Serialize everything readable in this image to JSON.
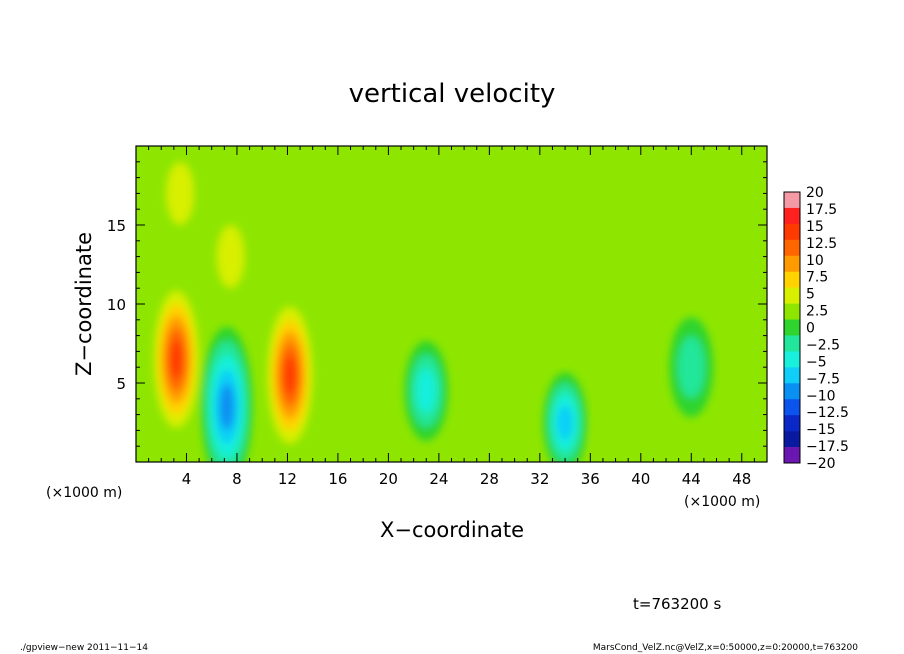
{
  "chart_data": {
    "type": "heatmap",
    "title": "vertical velocity",
    "xlabel": "X−coordinate",
    "ylabel": "Z−coordinate",
    "x_unit_left": "(×1000 m)",
    "x_unit_right": "(×1000 m)",
    "xlim": [
      0,
      50
    ],
    "ylim": [
      0,
      20
    ],
    "x_ticks": [
      4,
      8,
      12,
      16,
      20,
      24,
      28,
      32,
      36,
      40,
      44,
      48
    ],
    "y_ticks": [
      5,
      10,
      15
    ],
    "colorbar": {
      "labels": [
        "20",
        "17.5",
        "15",
        "12.5",
        "10",
        "7.5",
        "5",
        "2.5",
        "0",
        "−2.5",
        "−5",
        "−7.5",
        "−10",
        "−12.5",
        "−15",
        "−17.5",
        "−20"
      ],
      "colors": [
        "#f39aa6",
        "#ff2020",
        "#ff3a00",
        "#ff6600",
        "#ff9a00",
        "#ffd200",
        "#d8ef00",
        "#8ee600",
        "#2fd42f",
        "#22e69a",
        "#18f0dc",
        "#10cef7",
        "#0a8ff2",
        "#0b55ee",
        "#0a28c8",
        "#0a1aa0",
        "#6a16b0"
      ]
    },
    "features": [
      {
        "x": 3.2,
        "z": 6.5,
        "value": 14
      },
      {
        "x": 7.2,
        "z": 3.5,
        "value": -12
      },
      {
        "x": 12.2,
        "z": 5.5,
        "value": 13
      },
      {
        "x": 7.5,
        "z": 13,
        "value": 5
      },
      {
        "x": 3.5,
        "z": 17,
        "value": 3
      },
      {
        "x": 23,
        "z": 4.5,
        "value": -6
      },
      {
        "x": 34,
        "z": 2.5,
        "value": -8
      },
      {
        "x": 44,
        "z": 6,
        "value": -4
      },
      {
        "x": 38,
        "z": 1,
        "value": 2
      }
    ]
  },
  "time_label": "t=763200 s",
  "footer": {
    "left": "./gpview−new  2011−11−14",
    "right": "MarsCond_VelZ.nc@VelZ,x=0:50000,z=0:20000,t=763200"
  }
}
